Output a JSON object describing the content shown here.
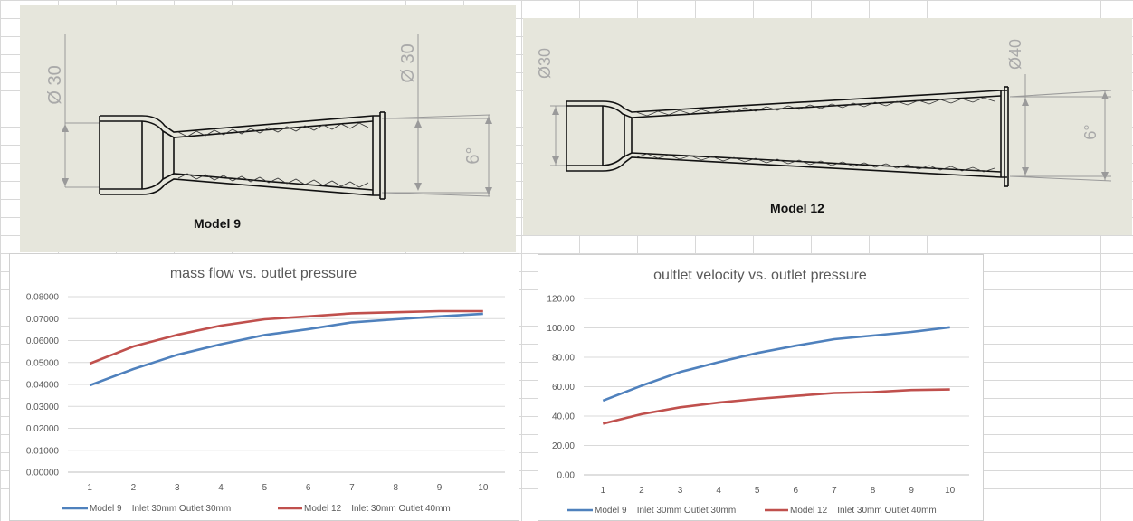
{
  "drawings": {
    "model9": {
      "label": "Model 9",
      "inlet_dim": "Ø 30",
      "outlet_dim": "Ø 30",
      "angle_dim": "6°"
    },
    "model12": {
      "label": "Model 12",
      "inlet_dim": "Ø30",
      "outlet_dim": "Ø40",
      "angle_dim": "6°"
    }
  },
  "chart_data": [
    {
      "type": "line",
      "title": "mass flow vs. outlet pressure",
      "xlabel": "",
      "ylabel": "",
      "x": [
        1,
        2,
        3,
        4,
        5,
        6,
        7,
        8,
        9,
        10
      ],
      "yticks": [
        "0.00000",
        "0.01000",
        "0.02000",
        "0.03000",
        "0.04000",
        "0.05000",
        "0.06000",
        "0.07000",
        "0.08000"
      ],
      "ylim": [
        0,
        0.08
      ],
      "grid": true,
      "legend_position": "bottom",
      "series": [
        {
          "name": "Model 9    Inlet 30mm Outlet 30mm",
          "color": "#4f81bd",
          "values": [
            0.0396,
            0.047,
            0.0535,
            0.0583,
            0.0625,
            0.0652,
            0.0683,
            0.0697,
            0.071,
            0.0722
          ]
        },
        {
          "name": "Model 12    Inlet 30mm Outlet 40mm",
          "color": "#c0504d",
          "values": [
            0.0495,
            0.0573,
            0.0626,
            0.0668,
            0.0697,
            0.071,
            0.0724,
            0.0729,
            0.0734,
            0.0734
          ]
        }
      ]
    },
    {
      "type": "line",
      "title": "oultlet velocity vs. outlet pressure",
      "xlabel": "",
      "ylabel": "",
      "x": [
        1,
        2,
        3,
        4,
        5,
        6,
        7,
        8,
        9,
        10
      ],
      "yticks": [
        "0.00",
        "20.00",
        "40.00",
        "60.00",
        "80.00",
        "100.00",
        "120.00"
      ],
      "ylim": [
        0,
        120
      ],
      "grid": true,
      "legend_position": "bottom",
      "series": [
        {
          "name": "Model 9    Inlet 30mm Outlet 30mm",
          "color": "#4f81bd",
          "values": [
            50.5,
            60.7,
            70.0,
            76.7,
            82.9,
            87.9,
            92.3,
            94.8,
            97.2,
            100.4
          ]
        },
        {
          "name": "Model 12    Inlet 30mm Outlet 40mm",
          "color": "#c0504d",
          "values": [
            34.8,
            41.3,
            46.0,
            49.2,
            51.7,
            53.7,
            55.7,
            56.3,
            57.7,
            58.1
          ]
        }
      ]
    }
  ]
}
